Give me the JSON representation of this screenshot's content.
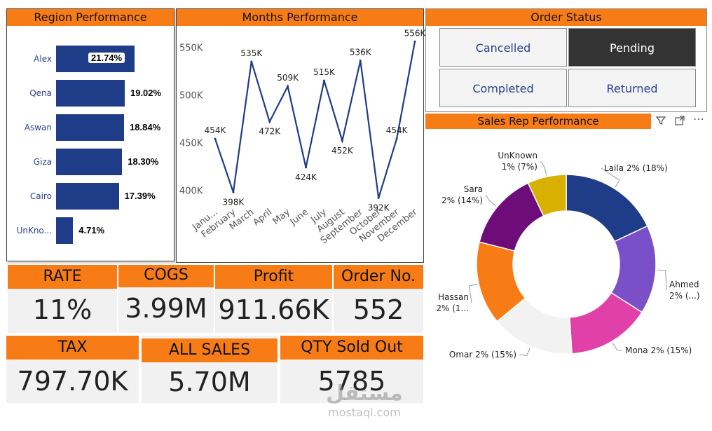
{
  "region": {
    "title": "Region Performance",
    "chart_data": {
      "type": "bar",
      "orientation": "horizontal",
      "categories": [
        "Alex",
        "Qena",
        "Aswan",
        "Giza",
        "Cairo",
        "UnKno..."
      ],
      "values": [
        21.74,
        19.02,
        18.84,
        18.3,
        17.39,
        4.71
      ],
      "labels": [
        "21.74%",
        "19.02%",
        "18.84%",
        "18.30%",
        "17.39%",
        "4.71%"
      ],
      "color": "#1f3c88"
    }
  },
  "months": {
    "title": "Months Performance",
    "chart_data": {
      "type": "line",
      "categories": [
        "Janu...",
        "February",
        "March",
        "April",
        "May",
        "June",
        "July",
        "August",
        "September",
        "October",
        "November",
        "December"
      ],
      "values": [
        454,
        398,
        535,
        472,
        509,
        424,
        515,
        452,
        536,
        392,
        454,
        556
      ],
      "labels": [
        "454K",
        "398K",
        "535K",
        "472K",
        "509K",
        "424K",
        "515K",
        "452K",
        "536K",
        "392K",
        "454K",
        "556K"
      ],
      "yticks": [
        400,
        450,
        500,
        550
      ],
      "ytick_labels": [
        "400K",
        "450K",
        "500K",
        "550K"
      ],
      "ylim": [
        385,
        565
      ],
      "color": "#1f3c88"
    }
  },
  "order": {
    "title": "Order Status",
    "buttons": [
      "Cancelled",
      "Pending",
      "Completed",
      "Returned"
    ],
    "selected": "Pending"
  },
  "sales": {
    "title": "Sales Rep Performance",
    "chart_data": {
      "type": "pie",
      "donut": true,
      "slices": [
        {
          "name": "Laila",
          "value": 18,
          "label": "Laila 2% (18%)",
          "color": "#1f3c88"
        },
        {
          "name": "Ahmed",
          "value": 16,
          "label1": "Ahmed",
          "label2": "2% (...)",
          "color": "#7b4fc8"
        },
        {
          "name": "Mona",
          "value": 15,
          "label": "Mona 2% (15%)",
          "color": "#e040a8"
        },
        {
          "name": "Omar",
          "value": 15,
          "label": "Omar 2% (15%)",
          "color": "#f2f2f2"
        },
        {
          "name": "Hassan",
          "value": 15,
          "label1": "Hassan",
          "label2": "2% (1...",
          "color": "#f87c16"
        },
        {
          "name": "Sara",
          "value": 14,
          "label1": "Sara",
          "label2": "2% (14%)",
          "color": "#6e0d7a"
        },
        {
          "name": "UnKnown",
          "value": 7,
          "label1": "UnKnown",
          "label2": "1% (7%)",
          "color": "#d8b000"
        }
      ]
    },
    "tools": {
      "filter": "filter-icon",
      "expand": "expand-icon",
      "more": "more-options-icon"
    }
  },
  "kpis": {
    "rate": {
      "label": "RATE",
      "value": "11%"
    },
    "cogs": {
      "label": "COGS",
      "value": "3.99M"
    },
    "profit": {
      "label": "Profit",
      "value": "911.66K"
    },
    "order_no": {
      "label": "Order No.",
      "value": "552"
    },
    "tax": {
      "label": "TAX",
      "value": "797.70K"
    },
    "all_sales": {
      "label": "ALL SALES",
      "value": "5.70M"
    },
    "qty": {
      "label": "QTY Sold Out",
      "value": "5785"
    }
  },
  "watermark": {
    "arabic": "مستقل",
    "latin": "mostaql.com"
  },
  "accent": "#f87c16"
}
